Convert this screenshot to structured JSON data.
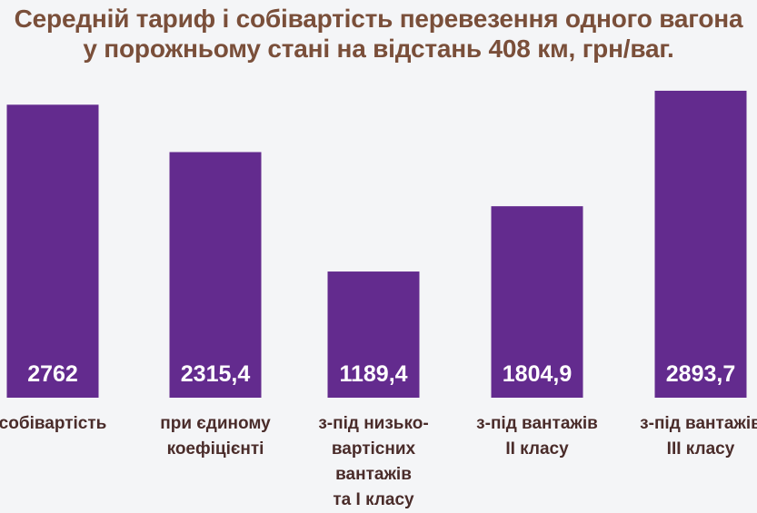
{
  "chart_data": {
    "type": "bar",
    "title_lines": [
      "Середній тариф і собівартість перевезення одного вагона",
      "у порожньому стані на відстань 408 км, грн/ваг."
    ],
    "categories": [
      [
        "собівартість"
      ],
      [
        "при єдиному",
        "коефіцієнті"
      ],
      [
        "з-під низько-",
        "вартісних",
        "вантажів",
        "та I класу"
      ],
      [
        "з-під вантажів",
        "II класу"
      ],
      [
        "з-під вантажів",
        "III класу"
      ]
    ],
    "values": [
      2762,
      2315.4,
      1189.4,
      1804.9,
      2893.7
    ],
    "value_labels": [
      "2762",
      "2315,4",
      "1189,4",
      "1804,9",
      "2893,7"
    ],
    "ylim": [
      0,
      3150
    ],
    "xlabel": "",
    "ylabel": "",
    "grid": false,
    "bar_color": "#632b8e",
    "title_color": "#7a4f3a",
    "label_color": "#4a2c2a"
  }
}
